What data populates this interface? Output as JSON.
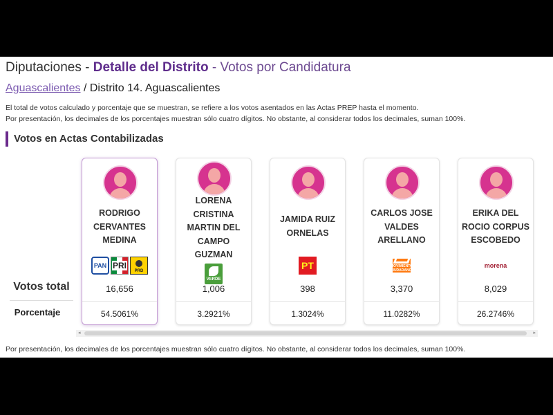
{
  "header": {
    "title_part1": "Diputaciones - ",
    "title_part2": "Detalle del Distrito",
    "title_part3": " - Votos por Candidatura"
  },
  "breadcrumb": {
    "link": "Aguascalientes",
    "rest": " / Distrito 14.  Aguascalientes"
  },
  "notes": {
    "line1": "El total de votos calculado y porcentaje que se muestran, se refiere a los votos asentados en las Actas PREP hasta el momento.",
    "line2": "Por presentación, los decimales de los porcentajes muestran sólo cuatro dígitos. No obstante, al considerar todos los decimales, suman 100%.",
    "footer": "Por presentación, los decimales de los porcentajes muestran sólo cuatro dígitos. No obstante, al considerar todos los decimales, suman 100%."
  },
  "section_title": "Votos en Actas Contabilizadas",
  "row_labels": {
    "total": "Votos total",
    "percent": "Porcentaje"
  },
  "candidates": [
    {
      "name_lines": [
        "RODRIGO",
        "CERVANTES",
        "MEDINA"
      ],
      "parties": [
        "PAN",
        "PRI",
        "PRD"
      ],
      "votes": "16,656",
      "percent": "54.5061%",
      "selected": true
    },
    {
      "name_lines": [
        "LORENA",
        "CRISTINA",
        "MARTIN DEL",
        "CAMPO",
        "GUZMAN"
      ],
      "parties": [
        "VERDE"
      ],
      "votes": "1,006",
      "percent": "3.2921%"
    },
    {
      "name_lines": [
        "JAMIDA RUIZ",
        "ORNELAS"
      ],
      "parties": [
        "PT"
      ],
      "votes": "398",
      "percent": "1.3024%"
    },
    {
      "name_lines": [
        "CARLOS JOSE",
        "VALDES",
        "ARELLANO"
      ],
      "parties": [
        "MOVIMIENTO CIUDADANO"
      ],
      "votes": "3,370",
      "percent": "11.0282%"
    },
    {
      "name_lines": [
        "ERIKA DEL",
        "ROCIO CORPUS",
        "ESCOBEDO"
      ],
      "parties": [
        "morena"
      ],
      "votes": "8,029",
      "percent": "26.2746%"
    }
  ],
  "colors": {
    "accent_purple": "#5f2d8c",
    "avatar_magenta": "#d6338f",
    "selected_border": "#c39bd3"
  }
}
